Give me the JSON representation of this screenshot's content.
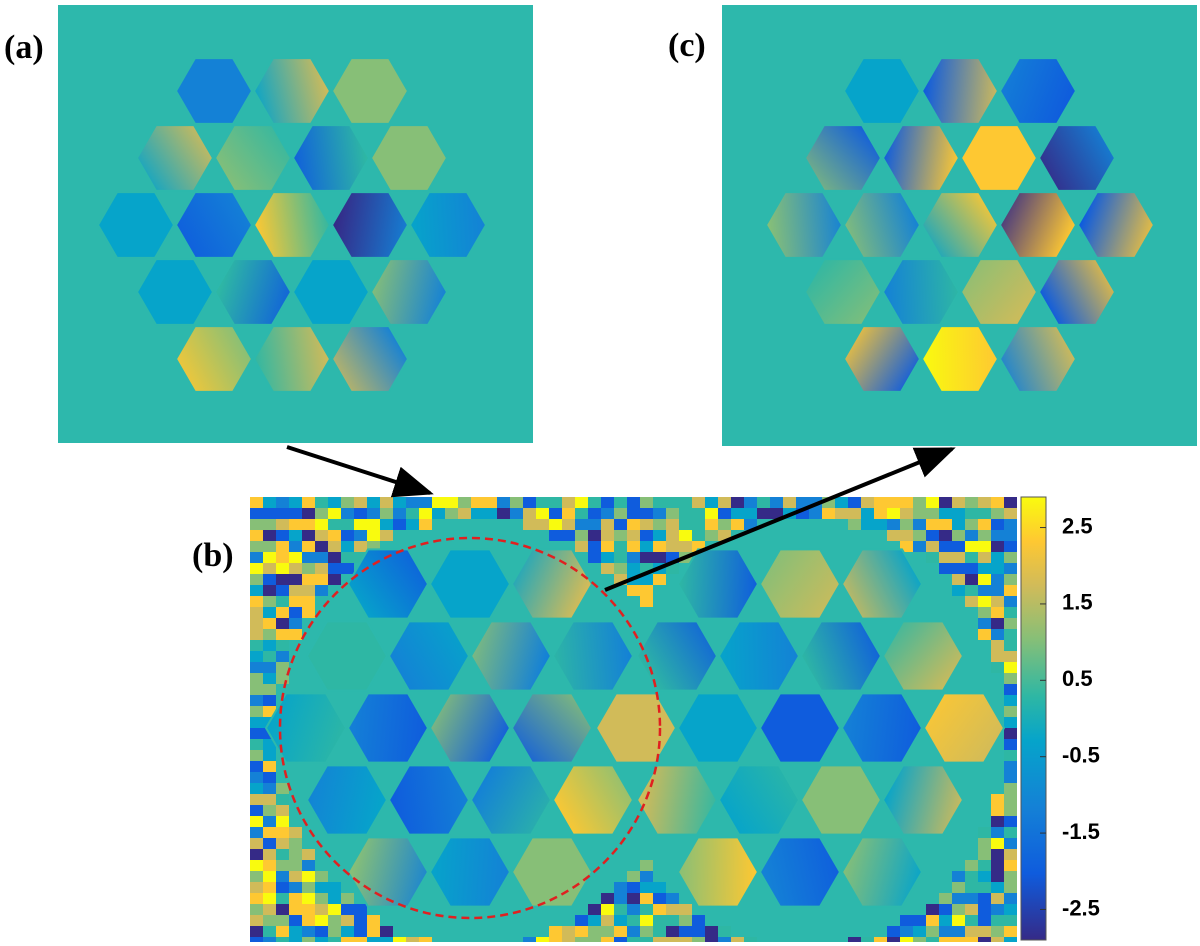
{
  "panels": {
    "a": {
      "label": "(a)"
    },
    "b": {
      "label": "(b)"
    },
    "c": {
      "label": "(c)"
    }
  },
  "colorbar": {
    "lim": [
      -2.9,
      2.9
    ],
    "ticks": [
      2.5,
      1.5,
      0.5,
      -0.5,
      -1.5,
      -2.5
    ]
  }
}
